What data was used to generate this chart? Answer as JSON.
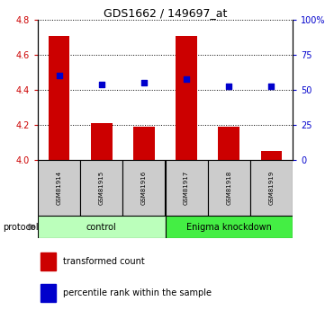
{
  "title": "GDS1662 / 149697_at",
  "samples": [
    "GSM81914",
    "GSM81915",
    "GSM81916",
    "GSM81917",
    "GSM81918",
    "GSM81919"
  ],
  "red_values": [
    4.71,
    4.21,
    4.19,
    4.71,
    4.19,
    4.05
  ],
  "blue_values": [
    4.48,
    4.43,
    4.44,
    4.46,
    4.42,
    4.42
  ],
  "ylim": [
    4.0,
    4.8
  ],
  "yticks": [
    4.0,
    4.2,
    4.4,
    4.6,
    4.8
  ],
  "right_yticks": [
    0,
    25,
    50,
    75,
    100
  ],
  "right_ytick_labels": [
    "0",
    "25",
    "50",
    "75",
    "100%"
  ],
  "bar_color": "#cc0000",
  "dot_color": "#0000cc",
  "bar_width": 0.5,
  "dot_size": 18,
  "protocol_groups": [
    {
      "label": "control",
      "start": 0,
      "end": 3,
      "color": "#bbffbb"
    },
    {
      "label": "Enigma knockdown",
      "start": 3,
      "end": 6,
      "color": "#44ee44"
    }
  ],
  "legend_items": [
    {
      "label": "transformed count",
      "color": "#cc0000"
    },
    {
      "label": "percentile rank within the sample",
      "color": "#0000cc"
    }
  ],
  "tick_color_left": "#cc0000",
  "tick_color_right": "#0000cc",
  "title_fontsize": 9,
  "tick_fontsize": 7,
  "sample_fontsize": 5,
  "proto_fontsize": 7,
  "legend_fontsize": 7
}
